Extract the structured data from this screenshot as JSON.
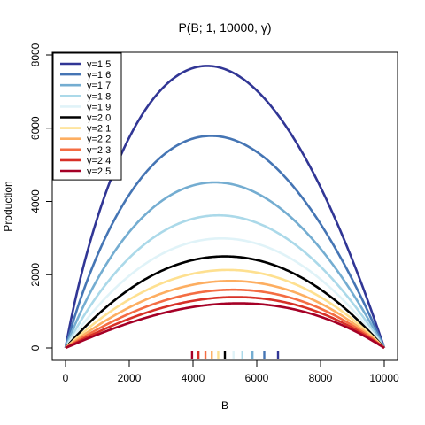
{
  "chart_data": {
    "type": "line",
    "title": "P(B; 1, 10000, γ)",
    "xlabel": "B",
    "ylabel": "Production",
    "xlim": [
      0,
      10000
    ],
    "ylim": [
      0,
      8000
    ],
    "x_ticks": [
      0,
      2000,
      4000,
      6000,
      8000,
      10000
    ],
    "y_ticks": [
      0,
      2000,
      4000,
      6000,
      8000
    ],
    "x_tick_labels": [
      "0",
      "2000",
      "4000",
      "6000",
      "8000",
      "10000"
    ],
    "y_tick_labels": [
      "0",
      "2000",
      "4000",
      "6000",
      "8000"
    ],
    "grid": false,
    "legend_position": "top-left",
    "curve_formula": "P = B * (1 - (B/10000)^(γ-1))",
    "peak_marks_on_x_axis": true,
    "series": [
      {
        "name": "γ=1.5",
        "gamma": 1.5,
        "color": "#313695",
        "peak_x": 6667,
        "peak_y": 7700
      },
      {
        "name": "γ=1.6",
        "gamma": 1.6,
        "color": "#4575b4",
        "peak_x": 6236,
        "peak_y": 5790
      },
      {
        "name": "γ=1.7",
        "gamma": 1.7,
        "color": "#74add1",
        "peak_x": 5866,
        "peak_y": 4520
      },
      {
        "name": "γ=1.8",
        "gamma": 1.8,
        "color": "#abd9e9",
        "peak_x": 5549,
        "peak_y": 3620
      },
      {
        "name": "γ=1.9",
        "gamma": 1.9,
        "color": "#e0f3f8",
        "peak_x": 5270,
        "peak_y": 2990
      },
      {
        "name": "γ=2.0",
        "gamma": 2.0,
        "color": "#000000",
        "peak_x": 5000,
        "peak_y": 2500
      },
      {
        "name": "γ=2.1",
        "gamma": 2.1,
        "color": "#fee090",
        "peak_x": 4790,
        "peak_y": 2130
      },
      {
        "name": "γ=2.2",
        "gamma": 2.2,
        "color": "#fdae61",
        "peak_x": 4590,
        "peak_y": 1830
      },
      {
        "name": "γ=2.3",
        "gamma": 2.3,
        "color": "#f46d43",
        "peak_x": 4390,
        "peak_y": 1590
      },
      {
        "name": "γ=2.4",
        "gamma": 2.4,
        "color": "#d73027",
        "peak_x": 4170,
        "peak_y": 1390
      },
      {
        "name": "γ=2.5",
        "gamma": 2.5,
        "color": "#a50026",
        "peak_x": 3970,
        "peak_y": 1220
      }
    ]
  }
}
